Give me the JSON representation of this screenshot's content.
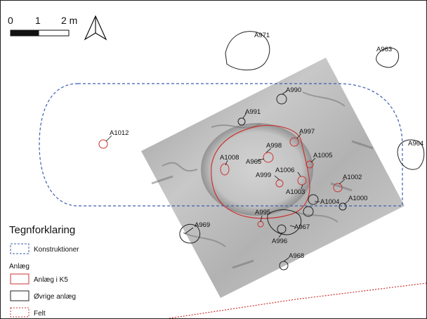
{
  "scale_bar": {
    "labels": [
      "0",
      "1",
      "2 m"
    ]
  },
  "north_arrow": {
    "icon": "north-arrow-icon"
  },
  "features_red": [
    {
      "id": "A1012"
    },
    {
      "id": "A1008"
    },
    {
      "id": "A998"
    },
    {
      "id": "A997"
    },
    {
      "id": "A965"
    },
    {
      "id": "A1005"
    },
    {
      "id": "A999"
    },
    {
      "id": "A1006"
    },
    {
      "id": "A1003"
    },
    {
      "id": "A1002"
    },
    {
      "id": "A995"
    }
  ],
  "features_black": [
    {
      "id": "A971"
    },
    {
      "id": "A963"
    },
    {
      "id": "A990"
    },
    {
      "id": "A991"
    },
    {
      "id": "A964"
    },
    {
      "id": "A1004"
    },
    {
      "id": "A1000"
    },
    {
      "id": "A969"
    },
    {
      "id": "A967"
    },
    {
      "id": "A996"
    },
    {
      "id": "A968"
    }
  ],
  "legend": {
    "title": "Tegnforklaring",
    "items": [
      {
        "label": "Konstruktioner",
        "color": "#3a5fb0",
        "style": "dashed"
      },
      {
        "label": "Anlæg",
        "header": true
      },
      {
        "label": "Anlæg i K5",
        "color": "#cc3333",
        "style": "solid"
      },
      {
        "label": "Øvrige anlæg",
        "color": "#222222",
        "style": "solid"
      },
      {
        "label": "Felt",
        "color": "#cc3333",
        "style": "dashed"
      }
    ]
  },
  "colors": {
    "construction": "#3a5fb0",
    "k5": "#cc3333",
    "other": "#222222",
    "field": "#cc3333"
  }
}
